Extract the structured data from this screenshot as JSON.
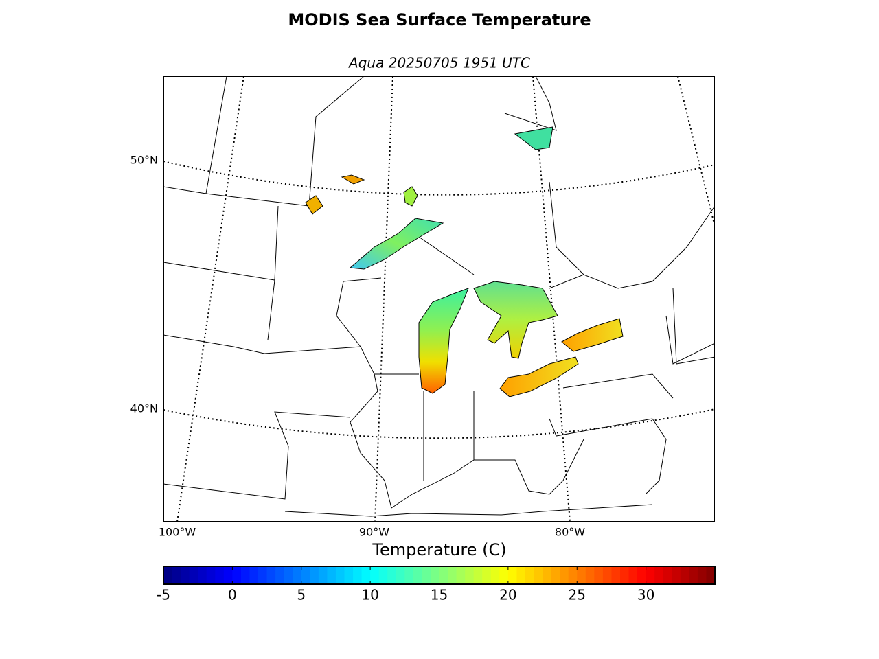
{
  "title": "MODIS Sea Surface Temperature",
  "subtitle": "Aqua 20250705 1951 UTC",
  "map": {
    "lat_labels": [
      "50°N",
      "40°N"
    ],
    "lon_labels": [
      "100°W",
      "90°W",
      "80°W"
    ]
  },
  "colorbar": {
    "label": "Temperature (C)",
    "lim": [
      -5,
      35
    ],
    "ticks": [
      -5,
      0,
      5,
      10,
      15,
      20,
      25,
      30
    ],
    "colormap": "jet"
  }
}
